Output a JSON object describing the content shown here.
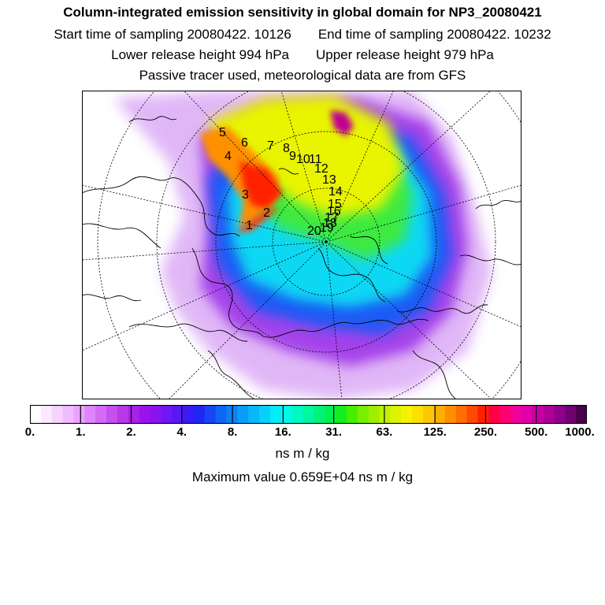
{
  "title": "Column-integrated emission sensitivity in global domain for NP3_20080421",
  "sampling": {
    "start": "Start time of sampling 20080422. 10126",
    "end": "End time of sampling 20080422. 10232"
  },
  "release": {
    "lower": "Lower release height  994 hPa",
    "upper": "Upper release height  979 hPa"
  },
  "note": "Passive tracer used, meteorological data are from GFS",
  "map": {
    "track_labels": [
      "1",
      "2",
      "3",
      "4",
      "5",
      "6",
      "7",
      "8",
      "9",
      "10",
      "11",
      "12",
      "13",
      "14",
      "15",
      "16",
      "17",
      "18",
      "19",
      "20"
    ]
  },
  "colorbar": {
    "tick_labels": [
      "0.",
      "1.",
      "2.",
      "4.",
      "8.",
      "16.",
      "31.",
      "63.",
      "125.",
      "250.",
      "500.",
      "1000."
    ],
    "colors": [
      "#ffffff",
      "#fbe9ff",
      "#f6d3ff",
      "#f0bcff",
      "#e9a3ff",
      "#df85ff",
      "#d46af8",
      "#c64ff0",
      "#b938e8",
      "#a822e6",
      "#9a13ec",
      "#8a13f0",
      "#6f17f4",
      "#5818f6",
      "#3a1cf6",
      "#2226f4",
      "#1646f4",
      "#0f66f6",
      "#0a82f6",
      "#0a9cf8",
      "#09b8f8",
      "#08d0fa",
      "#00ecfa",
      "#00fae6",
      "#00f8c4",
      "#00f6a0",
      "#00f27a",
      "#00f050",
      "#14ee20",
      "#48ee00",
      "#78ee00",
      "#9ef000",
      "#bef200",
      "#dcf400",
      "#f6f200",
      "#fee000",
      "#fec800",
      "#feae00",
      "#fe9000",
      "#fe6e00",
      "#fe4a00",
      "#fe2000",
      "#fe0044",
      "#fe0070",
      "#f2009a",
      "#e000aa",
      "#c800a4",
      "#ae0098",
      "#90008a",
      "#700070",
      "#4a004a"
    ],
    "unit": "ns m / kg"
  },
  "max_value": "Maximum value  0.659E+04 ns m / kg"
}
